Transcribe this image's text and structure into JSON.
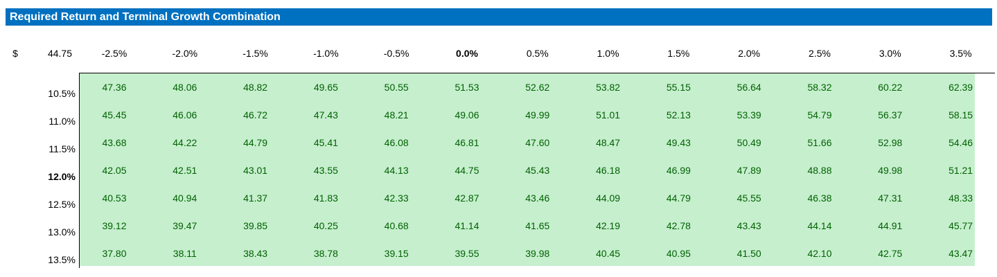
{
  "header": {
    "title": "Required Return and Terminal Growth Combination"
  },
  "table": {
    "corner_symbol": "$",
    "corner_value": "44.75",
    "columns": [
      "-2.5%",
      "-2.0%",
      "-1.5%",
      "-1.0%",
      "-0.5%",
      "0.0%",
      "0.5%",
      "1.0%",
      "1.5%",
      "2.0%",
      "2.5%",
      "3.0%",
      "3.5%"
    ],
    "rows": [
      {
        "label": "10.5%",
        "cells": [
          "47.36",
          "48.06",
          "48.82",
          "49.65",
          "50.55",
          "51.53",
          "52.62",
          "53.82",
          "55.15",
          "56.64",
          "58.32",
          "60.22",
          "62.39"
        ]
      },
      {
        "label": "11.0%",
        "cells": [
          "45.45",
          "46.06",
          "46.72",
          "47.43",
          "48.21",
          "49.06",
          "49.99",
          "51.01",
          "52.13",
          "53.39",
          "54.79",
          "56.37",
          "58.15"
        ]
      },
      {
        "label": "11.5%",
        "cells": [
          "43.68",
          "44.22",
          "44.79",
          "45.41",
          "46.08",
          "46.81",
          "47.60",
          "48.47",
          "49.43",
          "50.49",
          "51.66",
          "52.98",
          "54.46"
        ]
      },
      {
        "label": "12.0%",
        "cells": [
          "42.05",
          "42.51",
          "43.01",
          "43.55",
          "44.13",
          "44.75",
          "45.43",
          "46.18",
          "46.99",
          "47.89",
          "48.88",
          "49.98",
          "51.21"
        ]
      },
      {
        "label": "12.5%",
        "cells": [
          "40.53",
          "40.94",
          "41.37",
          "41.83",
          "42.33",
          "42.87",
          "43.46",
          "44.09",
          "44.79",
          "45.55",
          "46.38",
          "47.31",
          "48.33"
        ]
      },
      {
        "label": "13.0%",
        "cells": [
          "39.12",
          "39.47",
          "39.85",
          "40.25",
          "40.68",
          "41.14",
          "41.65",
          "42.19",
          "42.78",
          "43.43",
          "44.14",
          "44.91",
          "45.77"
        ]
      },
      {
        "label": "13.5%",
        "cells": [
          "37.80",
          "38.11",
          "38.43",
          "38.78",
          "39.15",
          "39.55",
          "39.98",
          "40.45",
          "40.95",
          "41.50",
          "42.10",
          "42.75",
          "43.47"
        ]
      }
    ]
  }
}
